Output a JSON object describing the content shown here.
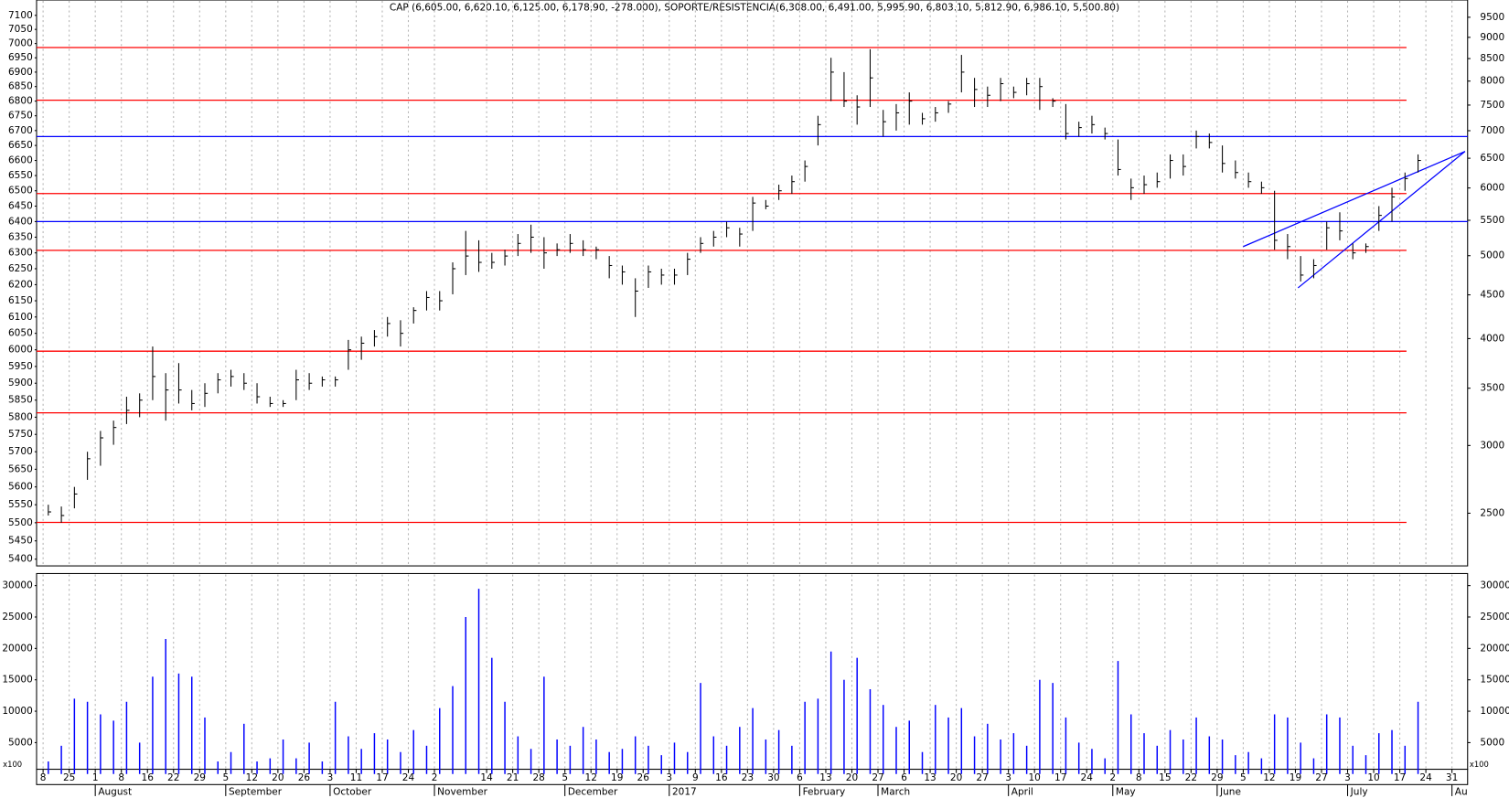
{
  "chart_data": [
    {
      "type": "ohlc",
      "title": "CAP (6,605.00, 6,620.10, 6,125.00, 6,178.90, -278.000), SOPORTE/RESISTENCIA(6,308.00, 6,491.00, 5,995.90, 6,803.10, 5,812.90, 6,986.10, 5,500.80)",
      "x": [
        0.2,
        0.7,
        1.2,
        1.7,
        2.2,
        2.7,
        3.2,
        3.7,
        4.2,
        4.7,
        5.2,
        5.7,
        6.2,
        6.7,
        7.2,
        7.7,
        8.2,
        8.7,
        9.2,
        9.7,
        10.2,
        10.7,
        11.2,
        11.7,
        12.2,
        12.7,
        13.2,
        13.7,
        14.2,
        14.7,
        15.2,
        15.7,
        16.2,
        16.7,
        17.2,
        17.7,
        18.2,
        18.7,
        19.2,
        19.7,
        20.2,
        20.7,
        21.2,
        21.7,
        22.2,
        22.7,
        23.2,
        23.7,
        24.2,
        24.7,
        25.2,
        25.7,
        26.2,
        26.7,
        27.2,
        27.7,
        28.2,
        28.7,
        29.2,
        29.7,
        30.2,
        30.7,
        31.2,
        31.7,
        32.2,
        32.7,
        33.2,
        33.7,
        34.2,
        34.7,
        35.2,
        35.7,
        36.2,
        36.7,
        37.2,
        37.7,
        38.2,
        38.7,
        39.2,
        39.7,
        40.2,
        40.7,
        41.2,
        41.7,
        42.2,
        42.7,
        43.2,
        43.7,
        44.2,
        44.7,
        45.2,
        45.7,
        46.2,
        46.7,
        47.2,
        47.7,
        48.2,
        48.7,
        49.2,
        49.7,
        50.2,
        50.7,
        51.2,
        51.7,
        52.2,
        52.7
      ],
      "high": [
        5550,
        5545,
        5600,
        5700,
        5760,
        5790,
        5860,
        5870,
        6010,
        5930,
        5960,
        5880,
        5900,
        5930,
        5940,
        5930,
        5900,
        5860,
        5850,
        5940,
        5930,
        5920,
        5920,
        6030,
        6040,
        6060,
        6100,
        6090,
        6130,
        6180,
        6180,
        6270,
        6370,
        6340,
        6300,
        6310,
        6360,
        6390,
        6350,
        6330,
        6360,
        6340,
        6320,
        6290,
        6260,
        6220,
        6260,
        6250,
        6250,
        6300,
        6350,
        6370,
        6400,
        6380,
        6480,
        6470,
        6520,
        6550,
        6600,
        6750,
        6950,
        6900,
        6820,
        6980,
        6770,
        6790,
        6830,
        6760,
        6780,
        6800,
        6960,
        6880,
        6850,
        6880,
        6850,
        6880,
        6880,
        6810,
        6790,
        6730,
        6750,
        6710,
        6670,
        6540,
        6550,
        6560,
        6620,
        6620,
        6700,
        6690,
        6650,
        6600,
        6560,
        6530,
        6500,
        6360,
        6290,
        6280,
        6400,
        6430,
        6330,
        6330,
        6450,
        6510,
        6560,
        6620
      ],
      "low": [
        5520,
        5500,
        5540,
        5620,
        5660,
        5720,
        5780,
        5800,
        5850,
        5790,
        5840,
        5820,
        5830,
        5870,
        5890,
        5880,
        5840,
        5830,
        5830,
        5850,
        5880,
        5890,
        5890,
        5940,
        5970,
        6010,
        6040,
        6010,
        6080,
        6120,
        6120,
        6170,
        6230,
        6240,
        6250,
        6260,
        6290,
        6300,
        6250,
        6290,
        6300,
        6290,
        6280,
        6220,
        6200,
        6100,
        6190,
        6200,
        6200,
        6230,
        6300,
        6320,
        6350,
        6320,
        6370,
        6440,
        6470,
        6490,
        6530,
        6650,
        6800,
        6780,
        6720,
        6780,
        6680,
        6700,
        6720,
        6720,
        6730,
        6760,
        6830,
        6780,
        6780,
        6800,
        6810,
        6820,
        6770,
        6780,
        6670,
        6680,
        6690,
        6670,
        6550,
        6470,
        6490,
        6510,
        6540,
        6550,
        6640,
        6640,
        6560,
        6540,
        6510,
        6490,
        6310,
        6280,
        6210,
        6220,
        6310,
        6340,
        6280,
        6300,
        6370,
        6400,
        6500,
        6560
      ],
      "close": [
        5530,
        5520,
        5580,
        5680,
        5740,
        5770,
        5820,
        5850,
        5920,
        5880,
        5880,
        5840,
        5870,
        5910,
        5920,
        5900,
        5860,
        5840,
        5840,
        5910,
        5900,
        5910,
        5910,
        6000,
        6020,
        6040,
        6080,
        6050,
        6120,
        6160,
        6150,
        6250,
        6290,
        6270,
        6270,
        6290,
        6330,
        6350,
        6300,
        6310,
        6330,
        6310,
        6310,
        6260,
        6240,
        6180,
        6240,
        6230,
        6230,
        6280,
        6330,
        6350,
        6380,
        6360,
        6460,
        6450,
        6500,
        6530,
        6580,
        6720,
        6900,
        6800,
        6780,
        6880,
        6730,
        6760,
        6800,
        6740,
        6760,
        6790,
        6900,
        6840,
        6820,
        6860,
        6830,
        6860,
        6850,
        6800,
        6690,
        6710,
        6720,
        6690,
        6570,
        6510,
        6520,
        6530,
        6600,
        6580,
        6680,
        6660,
        6590,
        6560,
        6530,
        6510,
        6340,
        6320,
        6230,
        6260,
        6380,
        6370,
        6300,
        6320,
        6420,
        6480,
        6540,
        6600
      ],
      "color": "#000000",
      "xlim": [
        -0.25,
        54.6
      ],
      "ylim": [
        5400,
        7100
      ],
      "yticks": [
        5400,
        5450,
        5500,
        5550,
        5600,
        5650,
        5700,
        5750,
        5800,
        5850,
        5900,
        5950,
        6000,
        6050,
        6100,
        6150,
        6200,
        6250,
        6300,
        6350,
        6400,
        6450,
        6500,
        6550,
        6600,
        6650,
        6700,
        6750,
        6800,
        6850,
        6900,
        6950,
        7000,
        7050,
        7100
      ],
      "log": true,
      "y2lim": [
        2209,
        9549
      ],
      "y2ticks": [
        2500,
        3000,
        3500,
        4000,
        4500,
        5000,
        5500,
        6000,
        6500,
        7000,
        7500,
        8000,
        8500,
        9000,
        9500
      ],
      "y2log": true,
      "levels": [
        {
          "value": 6986.1,
          "color": "#ff0000"
        },
        {
          "value": 6803.1,
          "color": "#ff0000"
        },
        {
          "value": 6680,
          "color": "#0000ff"
        },
        {
          "value": 6491,
          "color": "#ff0000"
        },
        {
          "value": 6400,
          "color": "#0000ff"
        },
        {
          "value": 6308,
          "color": "#ff0000"
        },
        {
          "value": 5995.9,
          "color": "#ff0000"
        },
        {
          "value": 5812.9,
          "color": "#ff0000"
        },
        {
          "value": 5500.8,
          "color": "#ff0000"
        }
      ],
      "trendlines": [
        {
          "x": [
            46,
            54.5
          ],
          "y": [
            6320,
            6630
          ],
          "color": "#0000ff"
        },
        {
          "x": [
            48.1,
            54.5
          ],
          "y": [
            6190,
            6630
          ],
          "color": "#0000ff"
        }
      ],
      "grid": true
    },
    {
      "type": "bar",
      "x": [
        0.2,
        0.7,
        1.2,
        1.7,
        2.2,
        2.7,
        3.2,
        3.7,
        4.2,
        4.7,
        5.2,
        5.7,
        6.2,
        6.7,
        7.2,
        7.7,
        8.2,
        8.7,
        9.2,
        9.7,
        10.2,
        10.7,
        11.2,
        11.7,
        12.2,
        12.7,
        13.2,
        13.7,
        14.2,
        14.7,
        15.2,
        15.7,
        16.2,
        16.7,
        17.2,
        17.7,
        18.2,
        18.7,
        19.2,
        19.7,
        20.2,
        20.7,
        21.2,
        21.7,
        22.2,
        22.7,
        23.2,
        23.7,
        24.2,
        24.7,
        25.2,
        25.7,
        26.2,
        26.7,
        27.2,
        27.7,
        28.2,
        28.7,
        29.2,
        29.7,
        30.2,
        30.7,
        31.2,
        31.7,
        32.2,
        32.7,
        33.2,
        33.7,
        34.2,
        34.7,
        35.2,
        35.7,
        36.2,
        36.7,
        37.2,
        37.7,
        38.2,
        38.7,
        39.2,
        39.7,
        40.2,
        40.7,
        41.2,
        41.7,
        42.2,
        42.7,
        43.2,
        43.7,
        44.2,
        44.7,
        45.2,
        45.7,
        46.2,
        46.7,
        47.2,
        47.7,
        48.2,
        48.7,
        49.2,
        49.7,
        50.2,
        50.7,
        51.2,
        51.7,
        52.2,
        52.7
      ],
      "values": [
        2000,
        4500,
        12000,
        11500,
        9500,
        8500,
        11500,
        5000,
        15500,
        21500,
        16000,
        15500,
        9000,
        2000,
        3500,
        8000,
        2000,
        2500,
        5500,
        2500,
        5000,
        2000,
        11500,
        6000,
        4000,
        6500,
        5500,
        3500,
        7000,
        4500,
        10500,
        14000,
        25000,
        29500,
        18500,
        11500,
        6000,
        4000,
        15500,
        5500,
        4500,
        7500,
        5500,
        3500,
        4000,
        6000,
        4500,
        3000,
        5000,
        3500,
        14500,
        6000,
        4500,
        7500,
        10500,
        5500,
        7000,
        4500,
        11500,
        12000,
        19500,
        15000,
        18500,
        13500,
        11000,
        7500,
        8500,
        3500,
        11000,
        9000,
        10500,
        6000,
        8000,
        5500,
        6500,
        4500,
        15000,
        14500,
        9000,
        5000,
        4000,
        2500,
        18000,
        9500,
        6500,
        4500,
        7000,
        5500,
        9000,
        6000,
        5500,
        3000,
        3500,
        2500,
        9500,
        9000,
        5000,
        2500,
        9500,
        9000,
        4500,
        3000,
        6500,
        7000,
        4500,
        11500
      ],
      "color": "#0000ff",
      "xlim": [
        -0.25,
        54.6
      ],
      "ylim": [
        0,
        31000
      ],
      "yticks": [
        5000,
        10000,
        15000,
        20000,
        25000,
        30000
      ],
      "unit_label": "x100",
      "xticks": [
        {
          "value": 0,
          "label": "8"
        },
        {
          "value": 1,
          "label": "25"
        },
        {
          "value": 2,
          "label": "1"
        },
        {
          "value": 3,
          "label": "8"
        },
        {
          "value": 4,
          "label": "16"
        },
        {
          "value": 5,
          "label": "22"
        },
        {
          "value": 6,
          "label": "29"
        },
        {
          "value": 7,
          "label": "5"
        },
        {
          "value": 8,
          "label": "12"
        },
        {
          "value": 9,
          "label": "20"
        },
        {
          "value": 10,
          "label": "26"
        },
        {
          "value": 11,
          "label": "3"
        },
        {
          "value": 12,
          "label": "11"
        },
        {
          "value": 13,
          "label": "17"
        },
        {
          "value": 14,
          "label": "24"
        },
        {
          "value": 15,
          "label": "2"
        },
        {
          "value": 17,
          "label": "14"
        },
        {
          "value": 18,
          "label": "21"
        },
        {
          "value": 19,
          "label": "28"
        },
        {
          "value": 20,
          "label": "5"
        },
        {
          "value": 21,
          "label": "12"
        },
        {
          "value": 22,
          "label": "19"
        },
        {
          "value": 23,
          "label": "26"
        },
        {
          "value": 24,
          "label": "3"
        },
        {
          "value": 25,
          "label": "9"
        },
        {
          "value": 26,
          "label": "16"
        },
        {
          "value": 27,
          "label": "23"
        },
        {
          "value": 28,
          "label": "30"
        },
        {
          "value": 29,
          "label": "6"
        },
        {
          "value": 30,
          "label": "13"
        },
        {
          "value": 31,
          "label": "20"
        },
        {
          "value": 32,
          "label": "27"
        },
        {
          "value": 33,
          "label": "6"
        },
        {
          "value": 34,
          "label": "13"
        },
        {
          "value": 35,
          "label": "20"
        },
        {
          "value": 36,
          "label": "27"
        },
        {
          "value": 37,
          "label": "3"
        },
        {
          "value": 38,
          "label": "10"
        },
        {
          "value": 39,
          "label": "17"
        },
        {
          "value": 40,
          "label": "24"
        },
        {
          "value": 41,
          "label": "2"
        },
        {
          "value": 42,
          "label": "8"
        },
        {
          "value": 43,
          "label": "15"
        },
        {
          "value": 44,
          "label": "22"
        },
        {
          "value": 45,
          "label": "29"
        },
        {
          "value": 46,
          "label": "5"
        },
        {
          "value": 47,
          "label": "12"
        },
        {
          "value": 48,
          "label": "19"
        },
        {
          "value": 49,
          "label": "27"
        },
        {
          "value": 50,
          "label": "3"
        },
        {
          "value": 51,
          "label": "10"
        },
        {
          "value": 52,
          "label": "17"
        },
        {
          "value": 53,
          "label": "24"
        },
        {
          "value": 54,
          "label": "31"
        }
      ],
      "months": [
        {
          "value": 2,
          "label": "August"
        },
        {
          "value": 7,
          "label": "September"
        },
        {
          "value": 11,
          "label": "October"
        },
        {
          "value": 15,
          "label": "November"
        },
        {
          "value": 20,
          "label": "December"
        },
        {
          "value": 24,
          "label": "2017"
        },
        {
          "value": 29,
          "label": "February"
        },
        {
          "value": 32,
          "label": "March"
        },
        {
          "value": 37,
          "label": "April"
        },
        {
          "value": 41,
          "label": "May"
        },
        {
          "value": 45,
          "label": "June"
        },
        {
          "value": 50,
          "label": "July"
        },
        {
          "value": 54,
          "label": "Au"
        }
      ],
      "grid": true
    }
  ]
}
